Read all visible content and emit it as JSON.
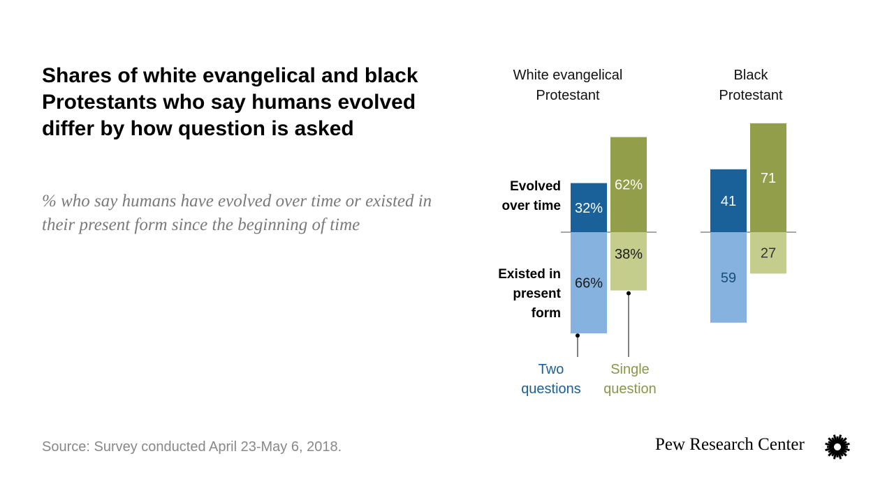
{
  "header": {
    "title": "Shares of white evangelical and black Protestants who say humans evolved differ by how question is asked",
    "subtitle": "% who say humans have evolved over time or existed in their present form since the beginning of time"
  },
  "footer": {
    "source": "Source: Survey conducted April 23-May 6, 2018.",
    "brand": "Pew Research Center"
  },
  "icons": {
    "brand_logo": "pew-starburst-icon"
  },
  "colors": {
    "two_evolved": "#1a6199",
    "two_existed": "#86b2df",
    "single_evolved": "#929e4a",
    "single_existed": "#c5cd8c",
    "baseline": "#8a8a8a",
    "two_legend": "#1a6199",
    "single_legend": "#8a9647"
  },
  "chart_data": {
    "type": "bar",
    "orientation": "diverging",
    "row_labels": {
      "evolved": "Evolved over time",
      "existed": "Existed in present form"
    },
    "legend": {
      "two": "Two questions",
      "single": "Single question"
    },
    "groups": [
      {
        "name": "White evangelical Protestant",
        "series": [
          {
            "key": "two",
            "evolved": 32,
            "existed": 66,
            "evolved_label": "32%",
            "existed_label": "66%"
          },
          {
            "key": "single",
            "evolved": 62,
            "existed": 38,
            "evolved_label": "62%",
            "existed_label": "38%"
          }
        ]
      },
      {
        "name": "Black Protestant",
        "series": [
          {
            "key": "two",
            "evolved": 41,
            "existed": 59,
            "evolved_label": "41",
            "existed_label": "59"
          },
          {
            "key": "single",
            "evolved": 71,
            "existed": 27,
            "evolved_label": "71",
            "existed_label": "27"
          }
        ]
      }
    ]
  }
}
